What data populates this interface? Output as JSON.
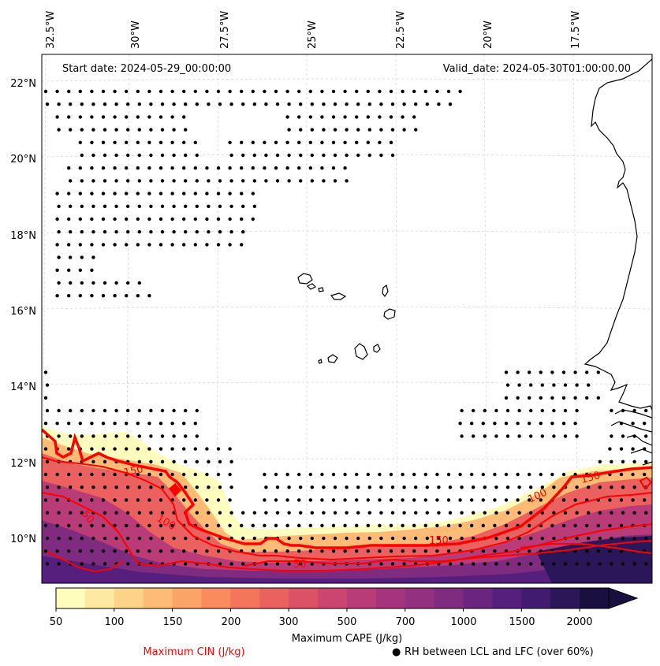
{
  "header": {
    "start_date": "Start date: 2024-05-29_00:00:00",
    "valid_date": "Valid_date: 2024-05-30T01:00:00.00"
  },
  "axes": {
    "lon_labels": [
      "32.5°W",
      "30°W",
      "27.5°W",
      "25°W",
      "22.5°W",
      "20°W",
      "17.5°W"
    ],
    "lat_labels": [
      "22°N",
      "20°N",
      "18°N",
      "16°N",
      "14°N",
      "12°N",
      "10°N"
    ]
  },
  "colorbar": {
    "title": "Maximum CAPE (J/kg)",
    "tick_labels": [
      "50",
      "100",
      "150",
      "200",
      "300",
      "500",
      "700",
      "1000",
      "1500",
      "2000"
    ],
    "colors": [
      "#fffdbe",
      "#fde9a2",
      "#fdd38a",
      "#fdbb76",
      "#fca367",
      "#fa8b5e",
      "#f4755c",
      "#ea615f",
      "#dc5166",
      "#cc4470",
      "#b93b78",
      "#a6347d",
      "#93307f",
      "#7f2b80",
      "#6b2580",
      "#571f7d",
      "#411b70",
      "#2a1658",
      "#1a1040"
    ]
  },
  "contours": {
    "cin_labels": [
      "150",
      "100",
      "50",
      "150",
      "50",
      "100",
      "150"
    ]
  },
  "legend": {
    "cin_label": "Maximum CIN (J/kg)",
    "rh_label": "RH between LCL and LFC (over 60%)",
    "rh_marker": "●"
  },
  "colors": {
    "cin_red": "#ff0000",
    "coast": "#000000",
    "grid": "#d8d8d8"
  }
}
